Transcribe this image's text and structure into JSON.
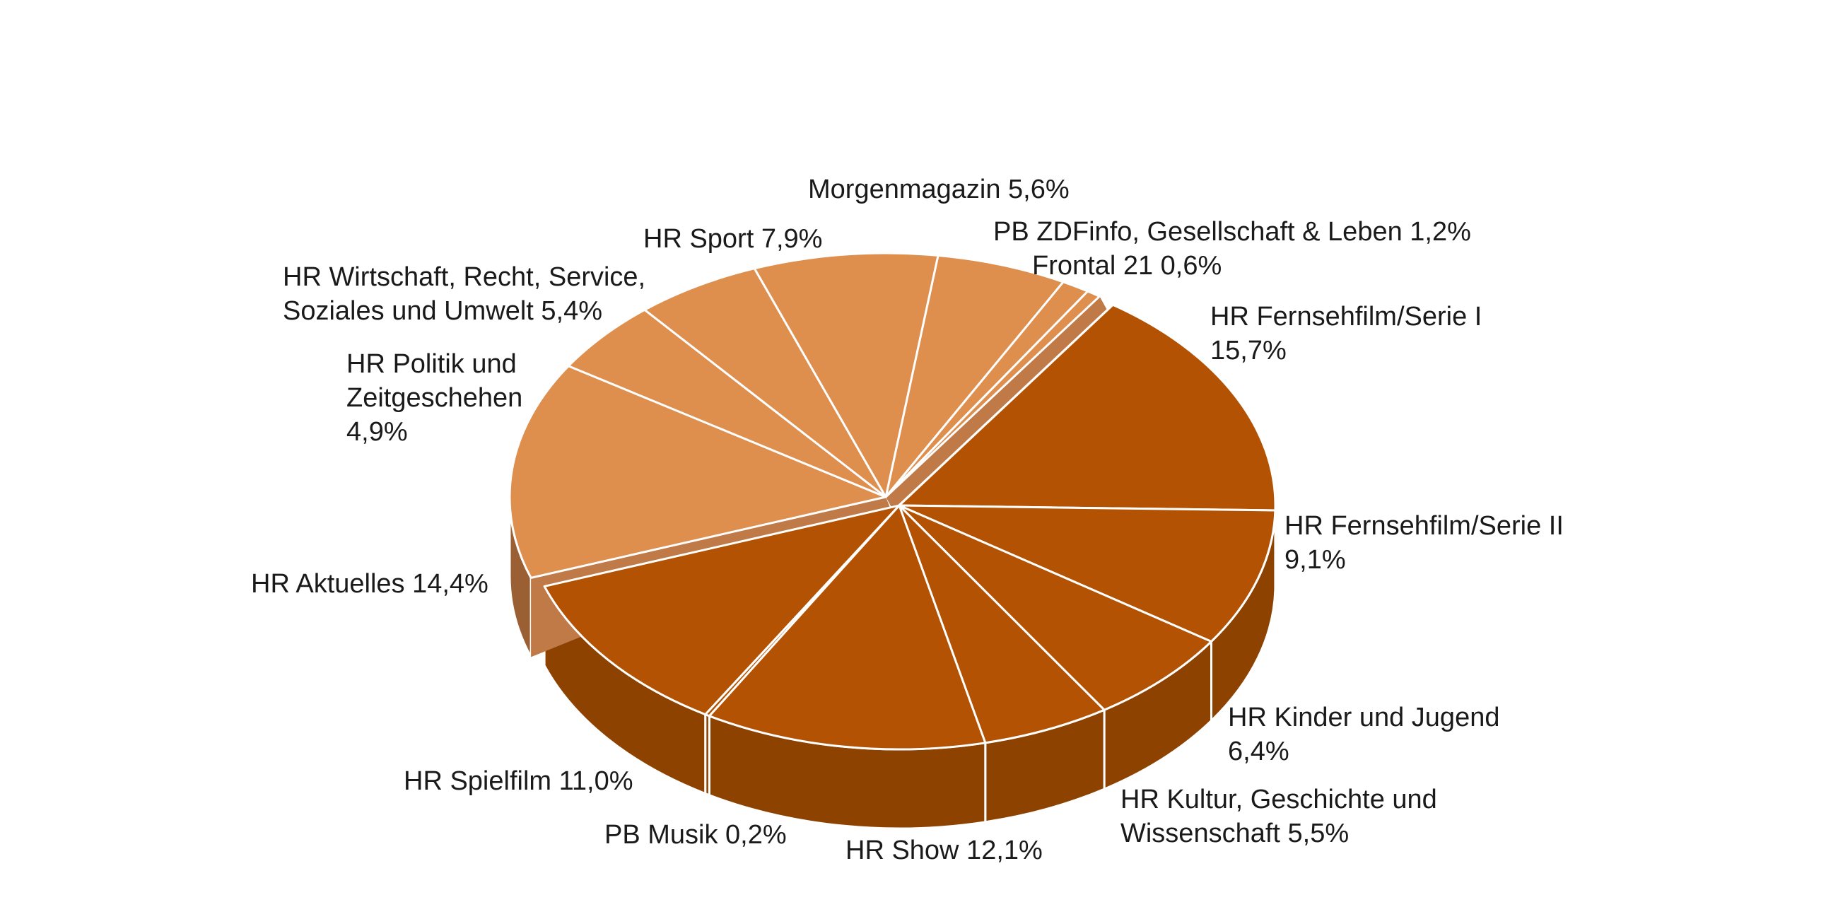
{
  "chart_data": {
    "type": "pie",
    "style": "3d-exploded",
    "colors": {
      "group_a_top": "#de8f4e",
      "group_a_side": "#9a5f33",
      "group_a_wall": "#bf7a48",
      "group_b_top": "#b25202",
      "group_b_side": "#8e4200",
      "divider": "#ffffff"
    },
    "slices": [
      {
        "name": "Morgenmagazin",
        "value": 5.6,
        "value_label": "5,6%",
        "group": "a"
      },
      {
        "name": "PB ZDFinfo, Gesellschaft & Leben",
        "value": 1.2,
        "value_label": "1,2%",
        "group": "a"
      },
      {
        "name": "Frontal 21",
        "value": 0.6,
        "value_label": "0,6%",
        "group": "a"
      },
      {
        "name": "HR Fernsehfilm/Serie I",
        "value": 15.7,
        "value_label": "15,7%",
        "group": "b"
      },
      {
        "name": "HR Fernsehfilm/Serie II",
        "value": 9.1,
        "value_label": "9,1%",
        "group": "b"
      },
      {
        "name": "HR Kinder und Jugend",
        "value": 6.4,
        "value_label": "6,4%",
        "group": "b"
      },
      {
        "name": "HR Kultur, Geschichte und Wissenschaft",
        "value": 5.5,
        "value_label": "5,5%",
        "group": "b"
      },
      {
        "name": "HR Show",
        "value": 12.1,
        "value_label": "12,1%",
        "group": "b"
      },
      {
        "name": "PB Musik",
        "value": 0.2,
        "value_label": "0,2%",
        "group": "b"
      },
      {
        "name": "HR Spielfilm",
        "value": 11.0,
        "value_label": "11,0%",
        "group": "b"
      },
      {
        "name": "HR Aktuelles",
        "value": 14.4,
        "value_label": "14,4%",
        "group": "a"
      },
      {
        "name": "HR Politik und Zeitgeschehen",
        "value": 4.9,
        "value_label": "4,9%",
        "group": "a"
      },
      {
        "name": "HR Wirtschaft, Recht, Service, Soziales und Umwelt",
        "value": 5.4,
        "value_label": "5,4%",
        "group": "a"
      },
      {
        "name": "HR Sport",
        "value": 7.9,
        "value_label": "7,9%",
        "group": "a"
      }
    ]
  }
}
